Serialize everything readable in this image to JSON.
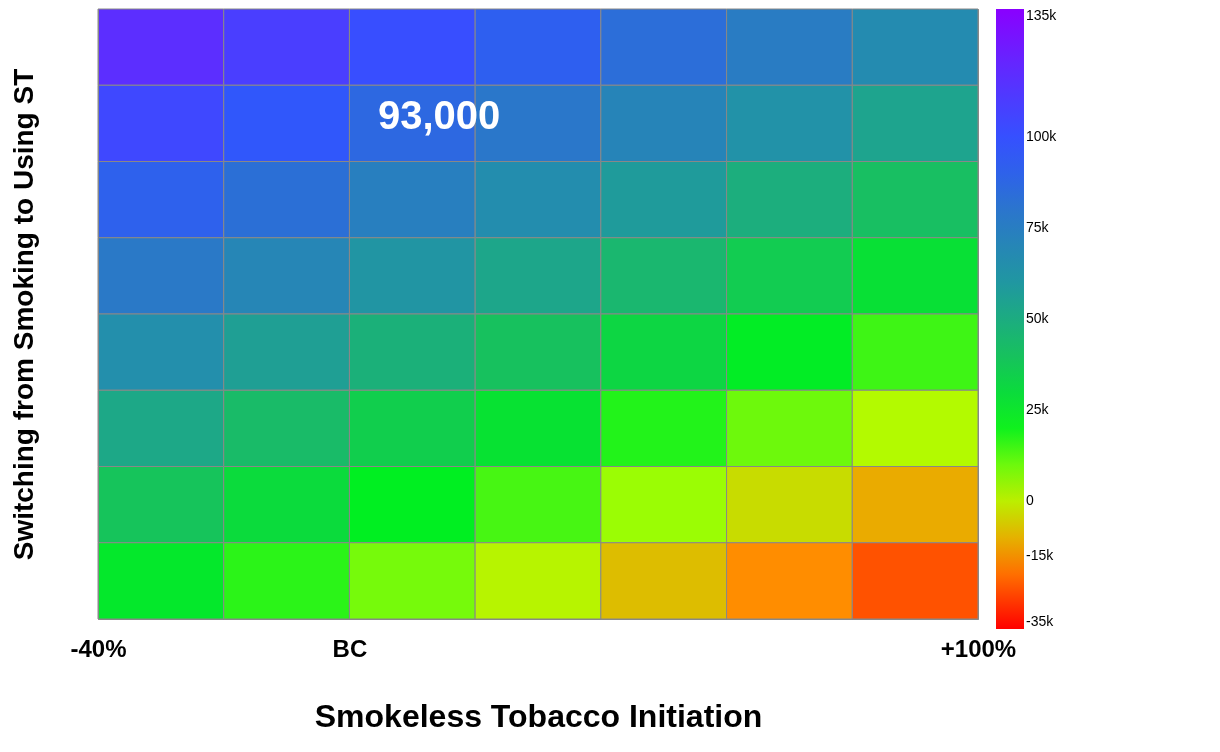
{
  "chart_data": {
    "type": "heatmap",
    "xlabel": "Smokeless Tobacco  Initiation",
    "ylabel": "Switching from Smoking to Using ST",
    "x": [
      -30,
      -10,
      10,
      30,
      50,
      70,
      90
    ],
    "y_categories": [
      null,
      null,
      null,
      null,
      null,
      null,
      null,
      null
    ],
    "xlim": [
      -40,
      100
    ],
    "xticks": [
      {
        "value": -40,
        "label": "-40%"
      },
      {
        "value": 0,
        "label": "BC"
      },
      {
        "value": 100,
        "label": "+100%"
      }
    ],
    "tick_labels": "x",
    "grid": true,
    "cells": [
      [
        117000,
        109000,
        101000,
        92000,
        84000,
        76000,
        67000
      ],
      [
        104000,
        96000,
        87000,
        79000,
        71000,
        63000,
        54000
      ],
      [
        91000,
        83000,
        74000,
        66000,
        58000,
        49000,
        41000
      ],
      [
        78000,
        70000,
        61000,
        53000,
        45000,
        36000,
        28000
      ],
      [
        65000,
        56000,
        48000,
        40000,
        32000,
        23000,
        15000
      ],
      [
        52000,
        43000,
        35000,
        27000,
        18000,
        10000,
        2000
      ],
      [
        39000,
        30000,
        22000,
        14000,
        5000,
        -3000,
        -11000
      ],
      [
        25000,
        17000,
        9000,
        1000,
        -8000,
        -16000,
        -24000
      ]
    ],
    "clim": [
      -35000,
      135000
    ],
    "cticks": [
      {
        "value": 135000,
        "label": "135k"
      },
      {
        "value": 100000,
        "label": "100k"
      },
      {
        "value": 75000,
        "label": "75k"
      },
      {
        "value": 50000,
        "label": "50k"
      },
      {
        "value": 25000,
        "label": "25k"
      },
      0,
      {
        "value": -15000,
        "label": "-15k"
      },
      {
        "value": -35000,
        "label": "-35k"
      }
    ],
    "annotations": [
      "93,000"
    ]
  }
}
